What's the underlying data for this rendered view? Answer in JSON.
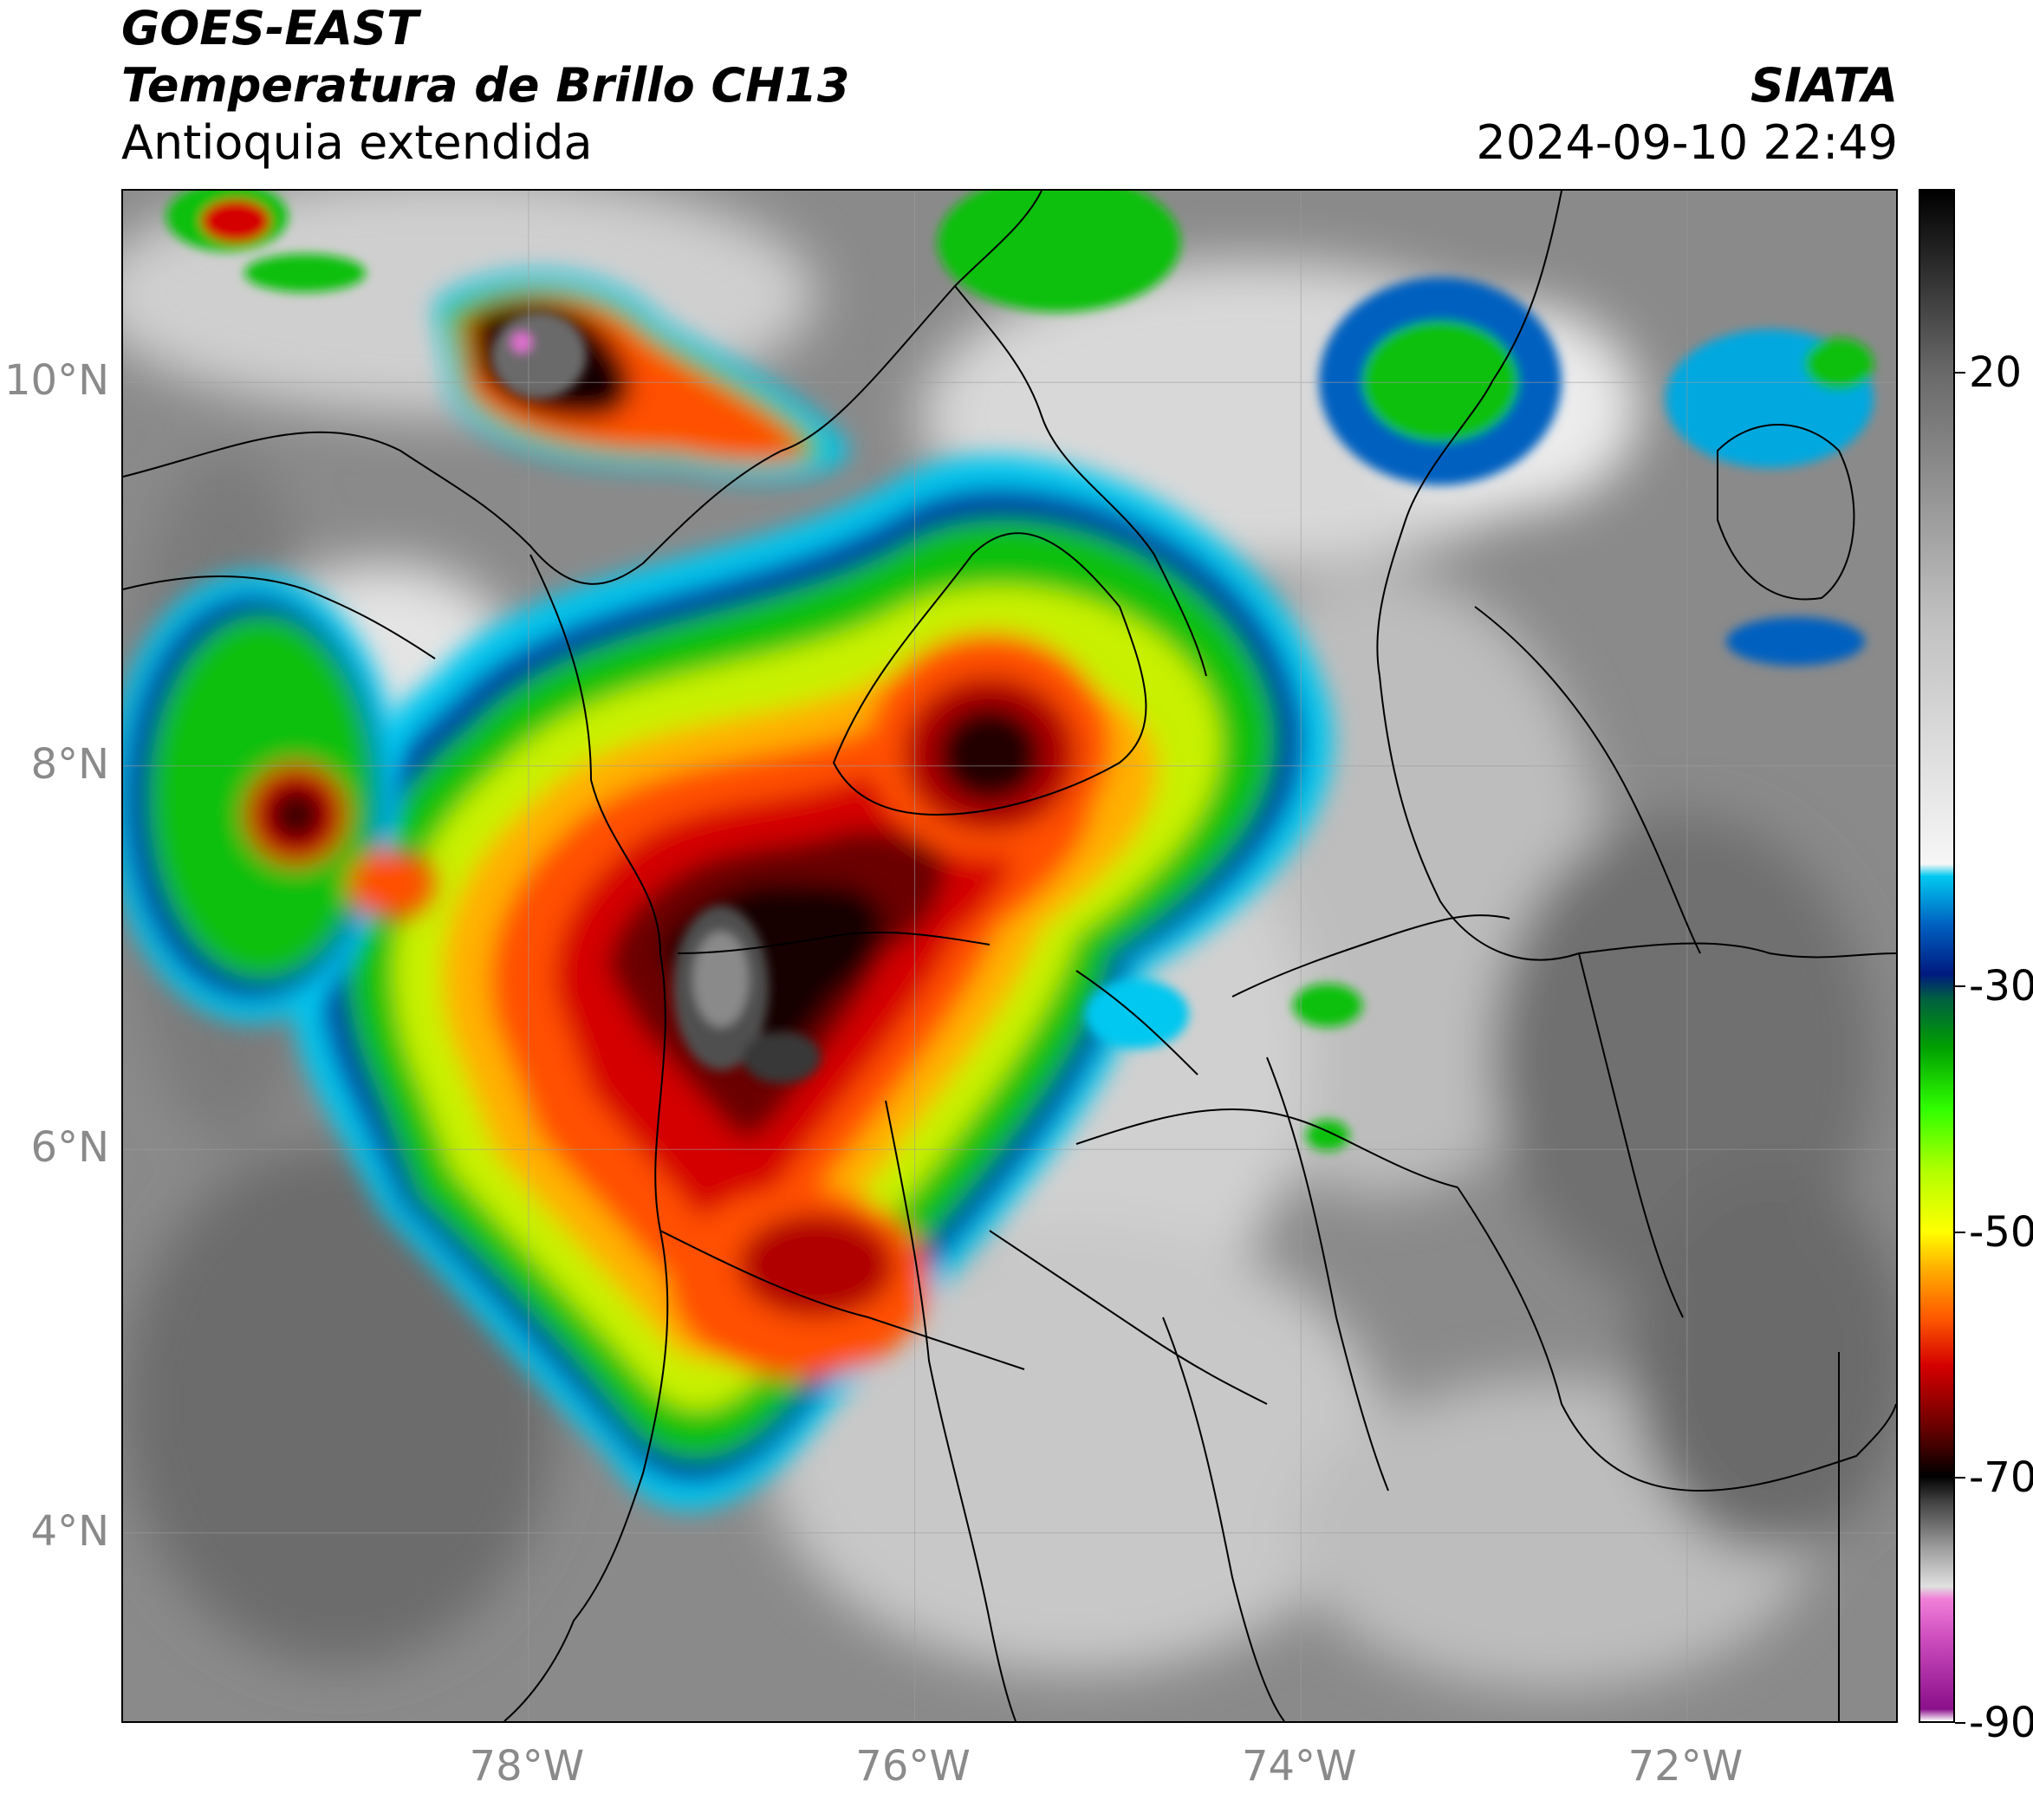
{
  "header": {
    "satellite": "GOES-EAST",
    "product": "Temperatura de Brillo CH13",
    "region": "Antioquia extendida",
    "organization": "SIATA",
    "datetime": "2024-09-10 22:49"
  },
  "map": {
    "lat_range": [
      3.0,
      11.0
    ],
    "lon_range": [
      -80.1,
      -70.9
    ],
    "lat_labels": [
      {
        "value": 10,
        "label": "10°N"
      },
      {
        "value": 8,
        "label": "8°N"
      },
      {
        "value": 6,
        "label": "6°N"
      },
      {
        "value": 4,
        "label": "4°N"
      }
    ],
    "lon_labels": [
      {
        "value": -78,
        "label": "78°W"
      },
      {
        "value": -76,
        "label": "76°W"
      },
      {
        "value": -74,
        "label": "74°W"
      },
      {
        "value": -72,
        "label": "72°W"
      }
    ],
    "cloud_systems": [
      {
        "name": "main-convective-complex",
        "lon": -77.0,
        "lat": 6.5,
        "min_temp_c": -75
      },
      {
        "name": "northern-storm-cell",
        "lon": -77.6,
        "lat": 10.0,
        "min_temp_c": -80
      },
      {
        "name": "eastern-antioquia-cell",
        "lon": -75.9,
        "lat": 7.9,
        "min_temp_c": -70
      },
      {
        "name": "pacific-western-cell",
        "lon": -79.3,
        "lat": 7.8,
        "min_temp_c": -65
      }
    ]
  },
  "colorbar": {
    "range": [
      -90,
      35
    ],
    "ticks": [
      {
        "value": 20,
        "label": "20"
      },
      {
        "value": -30,
        "label": "-30"
      },
      {
        "value": -50,
        "label": "-50"
      },
      {
        "value": -70,
        "label": "-70"
      },
      {
        "value": -90,
        "label": "-90"
      }
    ],
    "color_stops": [
      {
        "t": -90,
        "color": "#ffffff"
      },
      {
        "t": -89,
        "color": "#8a0f8a"
      },
      {
        "t": -83,
        "color": "#d050c0"
      },
      {
        "t": -80,
        "color": "#f080d8"
      },
      {
        "t": -79,
        "color": "#e0e0e0"
      },
      {
        "t": -76,
        "color": "#a0a0a0"
      },
      {
        "t": -72,
        "color": "#404040"
      },
      {
        "t": -70,
        "color": "#000000"
      },
      {
        "t": -66,
        "color": "#6a0000"
      },
      {
        "t": -61,
        "color": "#d40000"
      },
      {
        "t": -57,
        "color": "#ff5a00"
      },
      {
        "t": -53,
        "color": "#ffb000"
      },
      {
        "t": -50,
        "color": "#ffff00"
      },
      {
        "t": -45,
        "color": "#b0ff00"
      },
      {
        "t": -40,
        "color": "#30ff00"
      },
      {
        "t": -35,
        "color": "#00a000"
      },
      {
        "t": -31,
        "color": "#006040"
      },
      {
        "t": -29,
        "color": "#001a80"
      },
      {
        "t": -25,
        "color": "#0060c0"
      },
      {
        "t": -21,
        "color": "#00c8f0"
      },
      {
        "t": -20,
        "color": "#f6f6f6"
      },
      {
        "t": 0,
        "color": "#c0c0c0"
      },
      {
        "t": 20,
        "color": "#6a6a6a"
      },
      {
        "t": 35,
        "color": "#000000"
      }
    ]
  }
}
